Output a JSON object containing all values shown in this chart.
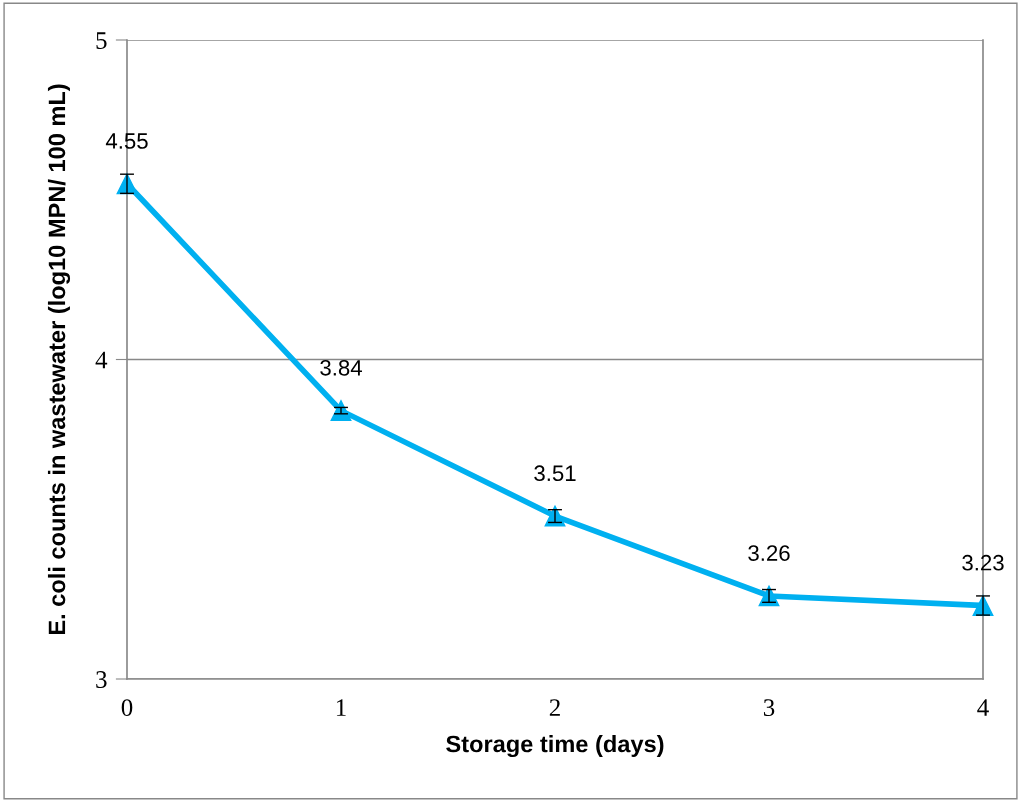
{
  "chart_data": {
    "type": "line",
    "xlabel": "Storage time (days)",
    "ylabel": "E. coli counts in wastewater (log10 MPN/ 100 mL)",
    "x": [
      0,
      1,
      2,
      3,
      4
    ],
    "series": [
      {
        "color": "#00b0f0",
        "values": [
          4.55,
          3.84,
          3.51,
          3.26,
          3.23
        ],
        "errors": [
          0.03,
          0.01,
          0.02,
          0.02,
          0.03
        ]
      }
    ],
    "xlim": [
      0,
      4
    ],
    "xticks": [
      0,
      1,
      2,
      3,
      4
    ],
    "ylim": [
      3,
      5
    ],
    "yticks": [
      3,
      4,
      5
    ],
    "grid": "y",
    "marker": "triangle",
    "line_style": "solid",
    "data_labels": true
  }
}
